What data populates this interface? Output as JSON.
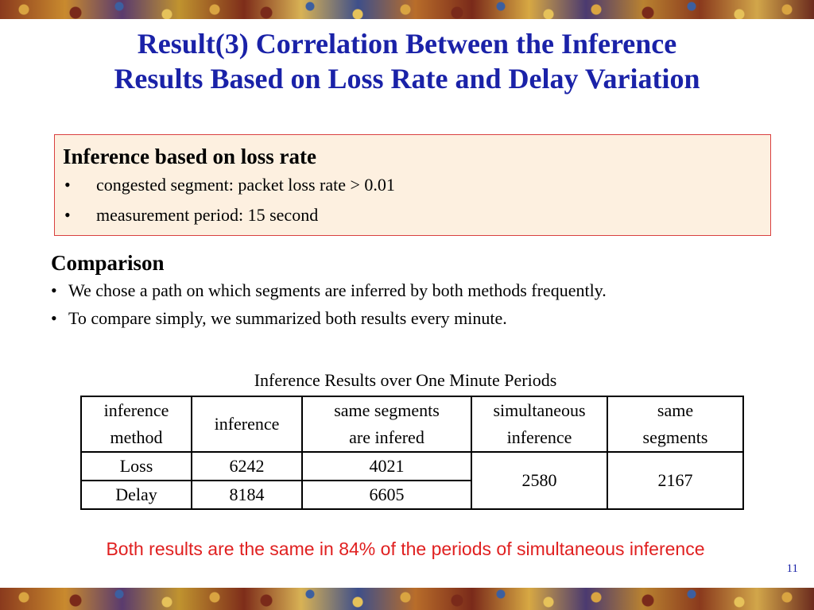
{
  "title": {
    "line1": "Result(3) Correlation Between the Inference",
    "line2": "Results Based on Loss Rate and Delay Variation"
  },
  "box": {
    "heading": "Inference based on loss rate",
    "bullet": "•",
    "items": [
      "congested segment: packet loss rate > 0.01",
      "measurement period: 15 second"
    ]
  },
  "comparison": {
    "heading": "Comparison",
    "bullet": "•",
    "items": [
      "We chose a path on which segments are inferred by both methods frequently.",
      "To compare simply, we summarized both results every minute."
    ]
  },
  "table": {
    "caption": "Inference Results over One Minute Periods",
    "headers": [
      [
        "inference",
        "method"
      ],
      [
        "inference"
      ],
      [
        "same segments",
        "are infered"
      ],
      [
        "simultaneous",
        "inference"
      ],
      [
        "same",
        "segments"
      ]
    ],
    "rows": [
      {
        "method": "Loss",
        "inference": "6242",
        "same_segments": "4021"
      },
      {
        "method": "Delay",
        "inference": "8184",
        "same_segments": "6605"
      }
    ],
    "simultaneous_inference": "2580",
    "same_segments_total": "2167"
  },
  "footer_note": "Both results are the same in 84% of the periods of simultaneous inference",
  "slide_number": "11",
  "colors": {
    "title": "#1a22a8",
    "box_background": "#fdf0e0",
    "box_border": "#d94040",
    "footer_note": "#e02020"
  }
}
